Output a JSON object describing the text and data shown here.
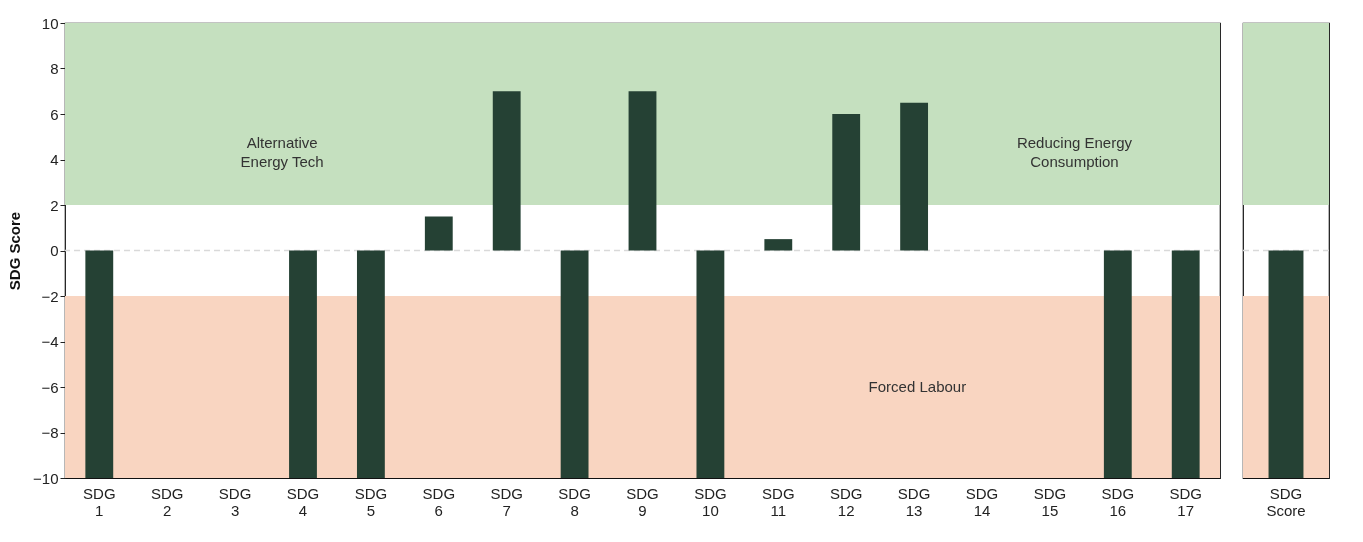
{
  "chart_data": [
    {
      "type": "bar",
      "ylabel": "SDG Score",
      "categories": [
        "SDG 1",
        "SDG 2",
        "SDG 3",
        "SDG 4",
        "SDG 5",
        "SDG 6",
        "SDG 7",
        "SDG 8",
        "SDG 9",
        "SDG 10",
        "SDG 11",
        "SDG 12",
        "SDG 13",
        "SDG 14",
        "SDG 15",
        "SDG 16",
        "SDG 17"
      ],
      "values": [
        -10,
        null,
        null,
        -10,
        -10,
        1.5,
        7,
        -10,
        7,
        -10,
        0.5,
        6,
        6.5,
        null,
        null,
        -10,
        -10
      ],
      "color": "#254134",
      "ylim": [
        -10,
        10
      ],
      "yticks": [
        {
          "value": -10,
          "label": "−10"
        },
        {
          "value": -8,
          "label": "−8"
        },
        {
          "value": -6,
          "label": "−6"
        },
        {
          "value": -4,
          "label": "−4"
        },
        {
          "value": -2,
          "label": "−2"
        },
        0,
        2,
        4,
        6,
        8,
        10
      ],
      "bands": [
        {
          "axis": "y",
          "from": 2,
          "to": 10,
          "color": "#c5e0bf"
        },
        {
          "axis": "y",
          "from": -10,
          "to": -2,
          "color": "#f9d5c1"
        }
      ],
      "ref_lines": [
        {
          "axis": "y",
          "value": 0,
          "color": "#d9d9d9",
          "line_style": "dashed"
        }
      ],
      "annotations": [
        "Alternative Energy Tech",
        "Reducing Energy Consumption",
        "Forced Labour"
      ],
      "grid": false
    },
    {
      "type": "bar",
      "categories": [
        "SDG Score"
      ],
      "values": [
        -10
      ],
      "color": "#254134",
      "ylim": [
        -10,
        10
      ],
      "bands": [
        {
          "axis": "y",
          "from": 2,
          "to": 10,
          "color": "#c5e0bf"
        },
        {
          "axis": "y",
          "from": -10,
          "to": -2,
          "color": "#f9d5c1"
        }
      ],
      "ref_lines": [
        {
          "axis": "y",
          "value": 0,
          "color": "#d9d9d9",
          "line_style": "dashed"
        }
      ],
      "tick_labels": "x",
      "grid": false
    }
  ]
}
